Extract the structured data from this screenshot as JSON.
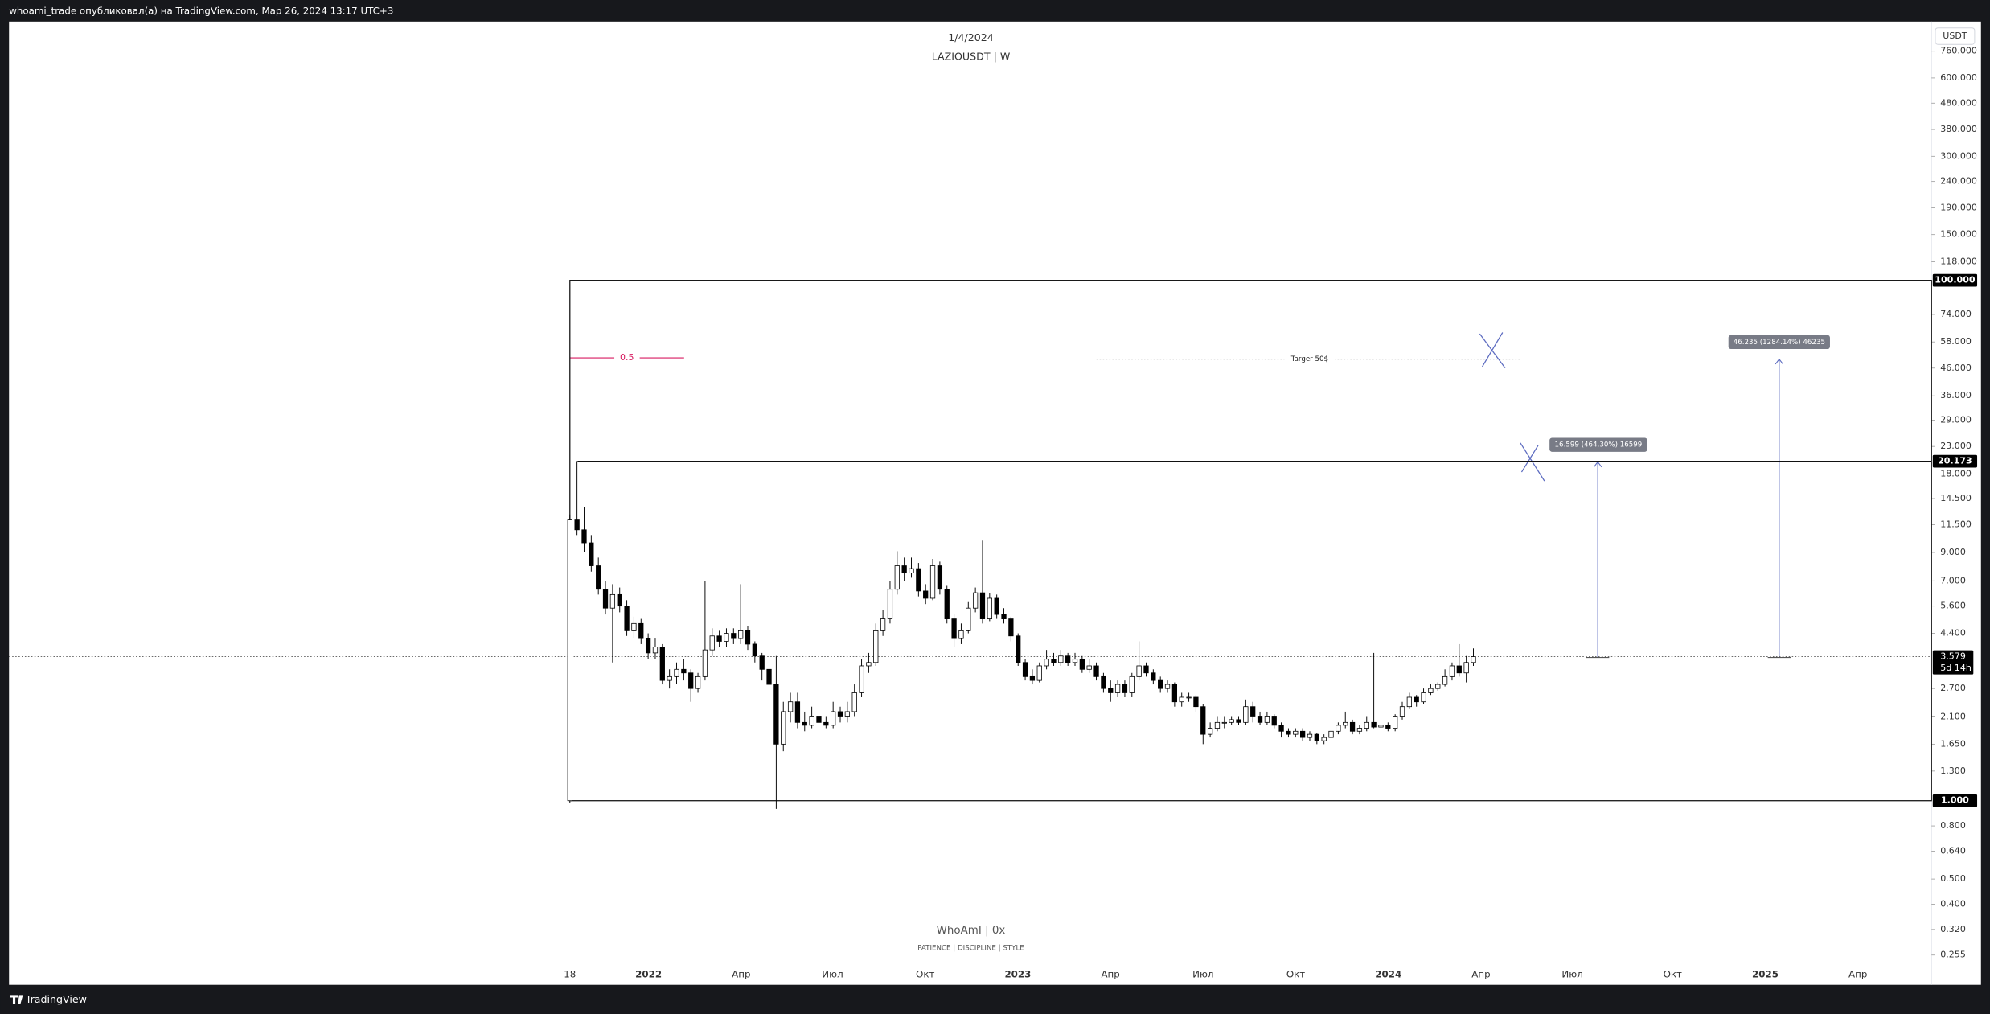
{
  "header": "whoami_trade опубликовал(а) на TradingView.com, Мар 26, 2024 13:17 UTC+3",
  "footer": "TradingView",
  "chart_data": {
    "type": "candlestick",
    "title": "1/4/2024",
    "subtitle": "LAZIOUSDT | W",
    "watermark": "WhoAmI | 0x",
    "watermark_sub": "PATIENCE | DISCIPLINE | STYLE",
    "currency": "USDT",
    "log_scale": true,
    "ylim": [
      0.196,
      988
    ],
    "yticks": [
      {
        "value": 760,
        "label": "760.000"
      },
      {
        "value": 600,
        "label": "600.000"
      },
      {
        "value": 480,
        "label": "480.000"
      },
      {
        "value": 380,
        "label": "380.000"
      },
      {
        "value": 300,
        "label": "300.000"
      },
      {
        "value": 240,
        "label": "240.000"
      },
      {
        "value": 190,
        "label": "190.000"
      },
      {
        "value": 150,
        "label": "150.000"
      },
      {
        "value": 118,
        "label": "118.000"
      },
      {
        "value": 74,
        "label": "74.000"
      },
      {
        "value": 58,
        "label": "58.000"
      },
      {
        "value": 46,
        "label": "46.000"
      },
      {
        "value": 36,
        "label": "36.000"
      },
      {
        "value": 29,
        "label": "29.000"
      },
      {
        "value": 23,
        "label": "23.000"
      },
      {
        "value": 18,
        "label": "18.000"
      },
      {
        "value": 14.5,
        "label": "14.500"
      },
      {
        "value": 11.5,
        "label": "11.500"
      },
      {
        "value": 9,
        "label": "9.000"
      },
      {
        "value": 7,
        "label": "7.000"
      },
      {
        "value": 5.6,
        "label": "5.600"
      },
      {
        "value": 4.4,
        "label": "4.400"
      },
      {
        "value": 2.7,
        "label": "2.700"
      },
      {
        "value": 2.1,
        "label": "2.100"
      },
      {
        "value": 1.65,
        "label": "1.650"
      },
      {
        "value": 1.3,
        "label": "1.300"
      },
      {
        "value": 0.8,
        "label": "0.800"
      },
      {
        "value": 0.64,
        "label": "0.640"
      },
      {
        "value": 0.5,
        "label": "0.500"
      },
      {
        "value": 0.4,
        "label": "0.400"
      },
      {
        "value": 0.32,
        "label": "0.320"
      },
      {
        "value": 0.255,
        "label": "0.255"
      }
    ],
    "xticks": [
      "18",
      "2022",
      "Апр",
      "Июл",
      "Окт",
      "2023",
      "Апр",
      "Июл",
      "Окт",
      "2024",
      "Апр",
      "Июл",
      "Окт",
      "2025",
      "Апр"
    ],
    "levels": [
      {
        "value": 100,
        "label": "100.000"
      },
      {
        "value": 20.173,
        "label": "20.173"
      },
      {
        "value": 1,
        "label": "1.000"
      }
    ],
    "last_price": {
      "value": 3.579,
      "label": "3.579",
      "countdown": "5d 14h"
    },
    "fib_label": "0.5",
    "target_label": "Targer 50$",
    "measures": [
      "16.599 (464.30%) 16599",
      "46.235 (1284.14%) 46235"
    ],
    "up_color": "#ffffff",
    "down_color": "#000000",
    "candles": [
      [
        1.0,
        12.6,
        0.98,
        12.0
      ],
      [
        12.0,
        20.2,
        10.5,
        11.0
      ],
      [
        11.0,
        13.5,
        9.0,
        9.8
      ],
      [
        9.8,
        10.5,
        7.6,
        8.0
      ],
      [
        8.0,
        8.6,
        6.2,
        6.5
      ],
      [
        6.5,
        7.0,
        5.2,
        5.5
      ],
      [
        5.5,
        6.8,
        3.4,
        6.2
      ],
      [
        6.2,
        6.6,
        5.3,
        5.6
      ],
      [
        5.6,
        5.9,
        4.3,
        4.5
      ],
      [
        4.5,
        5.1,
        4.2,
        4.8
      ],
      [
        4.8,
        5.0,
        4.0,
        4.2
      ],
      [
        4.2,
        4.4,
        3.5,
        3.7
      ],
      [
        3.7,
        4.2,
        3.5,
        3.9
      ],
      [
        3.9,
        4.0,
        2.8,
        2.9
      ],
      [
        2.9,
        3.2,
        2.7,
        3.0
      ],
      [
        3.0,
        3.4,
        2.8,
        3.2
      ],
      [
        3.2,
        3.5,
        2.9,
        3.1
      ],
      [
        3.1,
        3.2,
        2.4,
        2.7
      ],
      [
        2.7,
        3.1,
        2.6,
        3.0
      ],
      [
        3.0,
        7.0,
        2.9,
        3.8
      ],
      [
        3.8,
        4.6,
        3.6,
        4.3
      ],
      [
        4.3,
        4.5,
        3.9,
        4.1
      ],
      [
        4.1,
        4.6,
        3.9,
        4.4
      ],
      [
        4.4,
        4.6,
        4.0,
        4.2
      ],
      [
        4.2,
        6.8,
        4.0,
        4.5
      ],
      [
        4.5,
        4.7,
        3.8,
        4.0
      ],
      [
        4.0,
        4.1,
        3.4,
        3.6
      ],
      [
        3.6,
        3.7,
        2.9,
        3.2
      ],
      [
        3.2,
        3.4,
        2.6,
        2.8
      ],
      [
        2.8,
        3.6,
        0.93,
        1.65
      ],
      [
        1.65,
        2.4,
        1.55,
        2.2
      ],
      [
        2.2,
        2.6,
        2.0,
        2.4
      ],
      [
        2.4,
        2.6,
        1.9,
        2.0
      ],
      [
        2.0,
        2.2,
        1.85,
        1.95
      ],
      [
        1.95,
        2.3,
        1.9,
        2.1
      ],
      [
        2.1,
        2.2,
        1.9,
        2.0
      ],
      [
        2.0,
        2.1,
        1.9,
        1.95
      ],
      [
        1.95,
        2.4,
        1.9,
        2.2
      ],
      [
        2.2,
        2.3,
        2.0,
        2.1
      ],
      [
        2.1,
        2.4,
        2.0,
        2.2
      ],
      [
        2.2,
        2.8,
        2.1,
        2.6
      ],
      [
        2.6,
        3.5,
        2.5,
        3.3
      ],
      [
        3.3,
        3.7,
        3.1,
        3.4
      ],
      [
        3.4,
        4.8,
        3.3,
        4.5
      ],
      [
        4.5,
        5.4,
        4.3,
        5.0
      ],
      [
        5.0,
        7.0,
        4.8,
        6.5
      ],
      [
        6.5,
        9.1,
        6.2,
        8.0
      ],
      [
        8.0,
        8.6,
        7.0,
        7.5
      ],
      [
        7.5,
        8.6,
        7.2,
        7.8
      ],
      [
        7.8,
        8.2,
        6.1,
        6.4
      ],
      [
        6.4,
        6.8,
        5.7,
        6.0
      ],
      [
        6.0,
        8.5,
        5.9,
        8.0
      ],
      [
        8.0,
        8.3,
        6.2,
        6.5
      ],
      [
        6.5,
        6.7,
        4.8,
        5.0
      ],
      [
        5.0,
        5.2,
        3.9,
        4.2
      ],
      [
        4.2,
        4.8,
        4.0,
        4.5
      ],
      [
        4.5,
        5.8,
        4.4,
        5.5
      ],
      [
        5.5,
        6.6,
        5.3,
        6.3
      ],
      [
        6.3,
        10.0,
        4.8,
        5.0
      ],
      [
        5.0,
        6.3,
        4.9,
        6.0
      ],
      [
        6.0,
        6.2,
        5.0,
        5.2
      ],
      [
        5.2,
        5.5,
        4.8,
        5.0
      ],
      [
        5.0,
        5.1,
        4.1,
        4.3
      ],
      [
        4.3,
        4.4,
        3.3,
        3.4
      ],
      [
        3.4,
        3.5,
        2.9,
        3.0
      ],
      [
        3.0,
        3.2,
        2.8,
        2.9
      ],
      [
        2.9,
        3.4,
        2.85,
        3.3
      ],
      [
        3.3,
        3.8,
        3.2,
        3.5
      ],
      [
        3.5,
        3.7,
        3.3,
        3.4
      ],
      [
        3.4,
        3.8,
        3.3,
        3.6
      ],
      [
        3.6,
        3.7,
        3.3,
        3.4
      ],
      [
        3.4,
        3.7,
        3.3,
        3.5
      ],
      [
        3.5,
        3.6,
        3.1,
        3.2
      ],
      [
        3.2,
        3.5,
        3.1,
        3.3
      ],
      [
        3.3,
        3.4,
        2.9,
        3.0
      ],
      [
        3.0,
        3.1,
        2.6,
        2.7
      ],
      [
        2.7,
        2.9,
        2.4,
        2.6
      ],
      [
        2.6,
        2.9,
        2.5,
        2.8
      ],
      [
        2.8,
        2.9,
        2.5,
        2.6
      ],
      [
        2.6,
        3.1,
        2.5,
        3.0
      ],
      [
        3.0,
        4.1,
        2.9,
        3.3
      ],
      [
        3.3,
        3.4,
        3.0,
        3.1
      ],
      [
        3.1,
        3.2,
        2.8,
        2.9
      ],
      [
        2.9,
        3.0,
        2.6,
        2.7
      ],
      [
        2.7,
        2.9,
        2.6,
        2.8
      ],
      [
        2.8,
        2.85,
        2.3,
        2.4
      ],
      [
        2.4,
        2.6,
        2.3,
        2.5
      ],
      [
        2.5,
        2.6,
        2.4,
        2.5
      ],
      [
        2.5,
        2.55,
        2.2,
        2.3
      ],
      [
        2.3,
        2.35,
        1.65,
        1.8
      ],
      [
        1.8,
        2.0,
        1.75,
        1.9
      ],
      [
        1.9,
        2.1,
        1.85,
        2.0
      ],
      [
        2.0,
        2.1,
        1.9,
        2.0
      ],
      [
        2.0,
        2.1,
        1.95,
        2.05
      ],
      [
        2.05,
        2.1,
        1.95,
        2.0
      ],
      [
        2.0,
        2.45,
        1.95,
        2.3
      ],
      [
        2.3,
        2.4,
        2.0,
        2.1
      ],
      [
        2.1,
        2.2,
        1.95,
        2.0
      ],
      [
        2.0,
        2.2,
        1.95,
        2.1
      ],
      [
        2.1,
        2.15,
        1.9,
        1.95
      ],
      [
        1.95,
        2.0,
        1.75,
        1.85
      ],
      [
        1.85,
        1.9,
        1.75,
        1.8
      ],
      [
        1.8,
        1.9,
        1.75,
        1.85
      ],
      [
        1.85,
        1.9,
        1.7,
        1.75
      ],
      [
        1.75,
        1.85,
        1.7,
        1.8
      ],
      [
        1.8,
        1.82,
        1.65,
        1.7
      ],
      [
        1.7,
        1.8,
        1.65,
        1.75
      ],
      [
        1.75,
        1.9,
        1.7,
        1.85
      ],
      [
        1.85,
        2.0,
        1.8,
        1.95
      ],
      [
        1.95,
        2.2,
        1.9,
        2.0
      ],
      [
        2.0,
        2.05,
        1.8,
        1.85
      ],
      [
        1.85,
        1.95,
        1.8,
        1.9
      ],
      [
        1.9,
        2.1,
        1.85,
        2.0
      ],
      [
        2.0,
        3.7,
        1.9,
        1.92
      ],
      [
        1.92,
        2.0,
        1.85,
        1.95
      ],
      [
        1.95,
        2.0,
        1.85,
        1.9
      ],
      [
        1.9,
        2.15,
        1.85,
        2.1
      ],
      [
        2.1,
        2.4,
        2.05,
        2.3
      ],
      [
        2.3,
        2.6,
        2.25,
        2.5
      ],
      [
        2.5,
        2.55,
        2.3,
        2.4
      ],
      [
        2.4,
        2.7,
        2.35,
        2.6
      ],
      [
        2.6,
        2.8,
        2.55,
        2.7
      ],
      [
        2.7,
        2.85,
        2.65,
        2.8
      ],
      [
        2.8,
        3.2,
        2.75,
        3.0
      ],
      [
        3.0,
        3.4,
        2.9,
        3.3
      ],
      [
        3.3,
        4.0,
        3.0,
        3.1
      ],
      [
        3.1,
        3.6,
        2.85,
        3.4
      ],
      [
        3.4,
        3.85,
        3.3,
        3.579
      ]
    ]
  }
}
